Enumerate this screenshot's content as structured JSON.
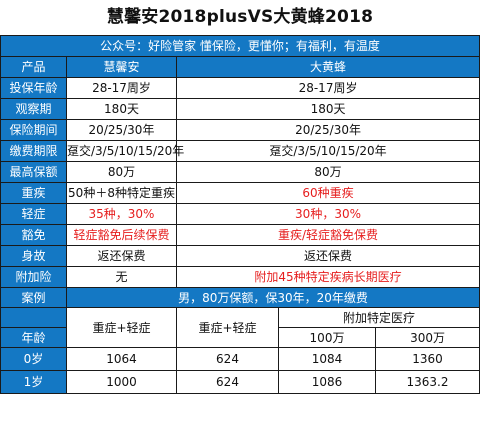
{
  "title": "慧馨安2018plusVS大黄蜂2018",
  "subtitle": "公众号：好险管家  懂保险，更懂你；有福利，有温度",
  "columns": {
    "label": "产品",
    "a": "慧馨安",
    "b": "大黄蜂"
  },
  "rows": [
    {
      "label": "投保年龄",
      "a": "28-17周岁",
      "b": "28-17周岁"
    },
    {
      "label": "观察期",
      "a": "180天",
      "b": "180天"
    },
    {
      "label": "保险期间",
      "a": "20/25/30年",
      "b": "20/25/30年"
    },
    {
      "label": "缴费期限",
      "a": "趸交/3/5/10/15/20年",
      "b": "趸交/3/5/10/15/20年"
    },
    {
      "label": "最高保额",
      "a": "80万",
      "b": "80万"
    },
    {
      "label": "重疾",
      "a": "50种＋8种特定重疾",
      "b": "60种重疾"
    },
    {
      "label": "轻症",
      "a": "35种，30%",
      "b": "30种，30%"
    },
    {
      "label": "豁免",
      "a": "轻症豁免后续保费",
      "b": "重疾/轻症豁免保费"
    },
    {
      "label": "身故",
      "a": "返还保费",
      "b": "返还保费"
    },
    {
      "label": "附加险",
      "a": "无",
      "b": "附加45种特定疾病长期医疗"
    }
  ],
  "case": {
    "label_top": "案例",
    "label_bottom": "年龄",
    "header": "男，80万保额，保30年，20年缴费",
    "a_col": "重症+轻症",
    "b_col": "重症+轻症",
    "extra_header": "附加特定医疗",
    "extra_100": "100万",
    "extra_300": "300万",
    "rows": [
      {
        "age": "0岁",
        "a": "1064",
        "b": "624",
        "c": "1084",
        "d": "1360"
      },
      {
        "age": "1岁",
        "a": "1000",
        "b": "624",
        "c": "1086",
        "d": "1363.2"
      }
    ]
  },
  "colors": {
    "header_blue": "#1478c4",
    "highlight_red": "#e61e1e"
  }
}
